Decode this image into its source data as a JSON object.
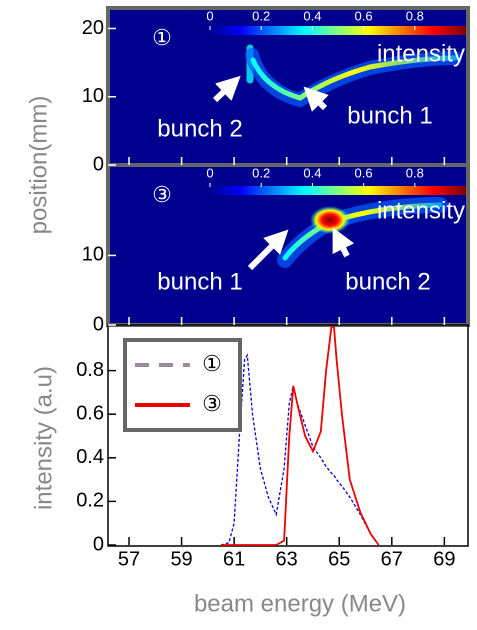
{
  "chart_data": [
    {
      "type": "image",
      "ylabel": "position(mm)",
      "ylim": [
        0,
        23
      ],
      "yticks": [
        0,
        10,
        20
      ],
      "label": "①",
      "colorbar_label": "intensity",
      "clim": [
        0,
        1
      ],
      "cticks": [
        0,
        0.2,
        0.4,
        0.6,
        0.8
      ],
      "annotations": [
        "bunch 2",
        "bunch 1"
      ]
    },
    {
      "type": "image",
      "ylim": [
        0,
        23
      ],
      "yticks": [
        0,
        10
      ],
      "label": "③",
      "colorbar_label": "intensity",
      "clim": [
        0,
        1
      ],
      "cticks": [
        0,
        0.2,
        0.4,
        0.6,
        0.8
      ],
      "annotations": [
        "bunch 1",
        "bunch 2"
      ]
    },
    {
      "type": "line",
      "xlabel": "beam energy (MeV)",
      "ylabel": "intensity (a.u)",
      "xlim": [
        56.2,
        69.9
      ],
      "xticks": [
        57,
        59,
        61,
        63,
        65,
        67,
        69
      ],
      "ylim": [
        0,
        1
      ],
      "yticks": [
        0,
        0.2,
        0.4,
        0.6,
        0.8
      ],
      "x": [
        60.5,
        60.8,
        61.0,
        61.2,
        61.4,
        61.5,
        61.7,
        62.0,
        62.3,
        62.6,
        62.9,
        63.1,
        63.25,
        63.4,
        63.7,
        64.0,
        64.3,
        64.5,
        64.7,
        64.8,
        64.9,
        65.1,
        65.4,
        65.8,
        66.2,
        66.5
      ],
      "series": [
        {
          "name": "①",
          "color": "#0000cc",
          "legend_color": "#9a8aa0",
          "dashed": true,
          "values": [
            0,
            0.01,
            0.1,
            0.5,
            0.85,
            0.87,
            0.6,
            0.35,
            0.22,
            0.14,
            0.35,
            0.65,
            0.73,
            0.65,
            0.55,
            0.45,
            0.4,
            0.36,
            0.33,
            0.32,
            0.3,
            0.27,
            0.22,
            0.14,
            0.05,
            0
          ]
        },
        {
          "name": "③",
          "color": "#ee0000",
          "legend_color": "#ee0000",
          "dashed": false,
          "values": [
            0,
            0,
            0,
            0,
            0,
            0,
            0,
            0,
            0,
            0,
            0.02,
            0.5,
            0.73,
            0.65,
            0.5,
            0.43,
            0.52,
            0.8,
            1.0,
            1.0,
            0.85,
            0.6,
            0.3,
            0.15,
            0.05,
            0
          ]
        }
      ],
      "legend": "upper left"
    }
  ]
}
